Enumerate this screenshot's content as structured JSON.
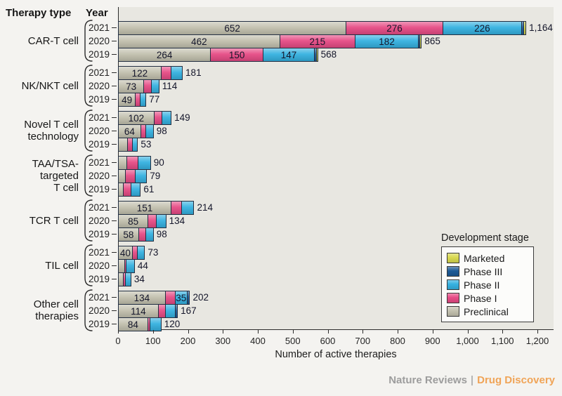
{
  "header": {
    "therapy_type_label": "Therapy type",
    "year_label": "Year"
  },
  "footer": {
    "brand": "Nature Reviews",
    "separator": "|",
    "publication": "Drug Discovery"
  },
  "chart_data": {
    "type": "bar",
    "orientation": "horizontal",
    "stacked": true,
    "title": "",
    "xlabel": "Number of active therapies",
    "ylabel": "Therapy type / Year",
    "xlim": [
      0,
      1240
    ],
    "grid": false,
    "x_ticks": [
      "0",
      "100",
      "200",
      "300",
      "400",
      "500",
      "600",
      "700",
      "800",
      "900",
      "1,000",
      "1,100",
      "1,200"
    ],
    "stages": [
      {
        "name": "Preclinical",
        "color": "#c2c0ae"
      },
      {
        "name": "Phase I",
        "color": "#e64b85"
      },
      {
        "name": "Phase II",
        "color": "#35b1e0"
      },
      {
        "name": "Phase III",
        "color": "#1d5a96"
      },
      {
        "name": "Marketed",
        "color": "#d8d94f"
      }
    ],
    "legend": {
      "title": "Development stage",
      "position": "lower right",
      "entries": [
        "Marketed",
        "Phase III",
        "Phase II",
        "Phase I",
        "Preclinical"
      ]
    },
    "groups": [
      {
        "label_lines": [
          "CAR-T cell"
        ],
        "rows": [
          {
            "year": "2021",
            "total_label": "1,164",
            "segments": [
              {
                "stage": "Preclinical",
                "value": 652,
                "label": "652"
              },
              {
                "stage": "Phase I",
                "value": 276,
                "label": "276"
              },
              {
                "stage": "Phase II",
                "value": 226,
                "label": "226"
              },
              {
                "stage": "Phase III",
                "value": 6
              },
              {
                "stage": "Marketed",
                "value": 4
              }
            ]
          },
          {
            "year": "2020",
            "total_label": "865",
            "segments": [
              {
                "stage": "Preclinical",
                "value": 462,
                "label": "462"
              },
              {
                "stage": "Phase I",
                "value": 215,
                "label": "215"
              },
              {
                "stage": "Phase II",
                "value": 182,
                "label": "182"
              },
              {
                "stage": "Phase III",
                "value": 4
              },
              {
                "stage": "Marketed",
                "value": 2
              }
            ]
          },
          {
            "year": "2019",
            "total_label": "568",
            "segments": [
              {
                "stage": "Preclinical",
                "value": 264,
                "label": "264"
              },
              {
                "stage": "Phase I",
                "value": 150,
                "label": "150"
              },
              {
                "stage": "Phase II",
                "value": 147,
                "label": "147"
              },
              {
                "stage": "Phase III",
                "value": 6
              },
              {
                "stage": "Marketed",
                "value": 1
              }
            ]
          }
        ]
      },
      {
        "label_lines": [
          "NK/NKT cell"
        ],
        "rows": [
          {
            "year": "2021",
            "total_label": "181",
            "segments": [
              {
                "stage": "Preclinical",
                "value": 122,
                "label": "122"
              },
              {
                "stage": "Phase I",
                "value": 28
              },
              {
                "stage": "Phase II",
                "value": 31
              }
            ]
          },
          {
            "year": "2020",
            "total_label": "114",
            "segments": [
              {
                "stage": "Preclinical",
                "value": 73,
                "label": "73"
              },
              {
                "stage": "Phase I",
                "value": 22
              },
              {
                "stage": "Phase II",
                "value": 19
              }
            ]
          },
          {
            "year": "2019",
            "total_label": "77",
            "segments": [
              {
                "stage": "Preclinical",
                "value": 49,
                "label": "49"
              },
              {
                "stage": "Phase I",
                "value": 13
              },
              {
                "stage": "Phase II",
                "value": 15
              }
            ]
          }
        ]
      },
      {
        "label_lines": [
          "Novel T cell",
          "technology"
        ],
        "rows": [
          {
            "year": "2021",
            "total_label": "149",
            "segments": [
              {
                "stage": "Preclinical",
                "value": 102,
                "label": "102"
              },
              {
                "stage": "Phase I",
                "value": 23
              },
              {
                "stage": "Phase II",
                "value": 24
              }
            ]
          },
          {
            "year": "2020",
            "total_label": "98",
            "segments": [
              {
                "stage": "Preclinical",
                "value": 64,
                "label": "64"
              },
              {
                "stage": "Phase I",
                "value": 15
              },
              {
                "stage": "Phase II",
                "value": 19
              }
            ]
          },
          {
            "year": "2019",
            "total_label": "53",
            "segments": [
              {
                "stage": "Preclinical",
                "value": 27
              },
              {
                "stage": "Phase I",
                "value": 13
              },
              {
                "stage": "Phase II",
                "value": 13
              }
            ]
          }
        ]
      },
      {
        "label_lines": [
          "TAA/TSA-",
          "targeted",
          "T cell"
        ],
        "rows": [
          {
            "year": "2021",
            "total_label": "90",
            "segments": [
              {
                "stage": "Preclinical",
                "value": 24
              },
              {
                "stage": "Phase I",
                "value": 32
              },
              {
                "stage": "Phase II",
                "value": 34
              }
            ]
          },
          {
            "year": "2020",
            "total_label": "79",
            "segments": [
              {
                "stage": "Preclinical",
                "value": 20
              },
              {
                "stage": "Phase I",
                "value": 28
              },
              {
                "stage": "Phase II",
                "value": 31
              }
            ]
          },
          {
            "year": "2019",
            "total_label": "61",
            "segments": [
              {
                "stage": "Preclinical",
                "value": 14
              },
              {
                "stage": "Phase I",
                "value": 22
              },
              {
                "stage": "Phase II",
                "value": 25
              }
            ]
          }
        ]
      },
      {
        "label_lines": [
          "TCR T cell"
        ],
        "rows": [
          {
            "year": "2021",
            "total_label": "214",
            "segments": [
              {
                "stage": "Preclinical",
                "value": 151,
                "label": "151"
              },
              {
                "stage": "Phase I",
                "value": 30
              },
              {
                "stage": "Phase II",
                "value": 33
              }
            ]
          },
          {
            "year": "2020",
            "total_label": "134",
            "segments": [
              {
                "stage": "Preclinical",
                "value": 85,
                "label": "85"
              },
              {
                "stage": "Phase I",
                "value": 24
              },
              {
                "stage": "Phase II",
                "value": 25
              }
            ]
          },
          {
            "year": "2019",
            "total_label": "98",
            "segments": [
              {
                "stage": "Preclinical",
                "value": 58,
                "label": "58"
              },
              {
                "stage": "Phase I",
                "value": 20
              },
              {
                "stage": "Phase II",
                "value": 20
              }
            ]
          }
        ]
      },
      {
        "label_lines": [
          "TIL cell"
        ],
        "rows": [
          {
            "year": "2021",
            "total_label": "73",
            "segments": [
              {
                "stage": "Preclinical",
                "value": 40,
                "label": "40"
              },
              {
                "stage": "Phase I",
                "value": 14
              },
              {
                "stage": "Phase II",
                "value": 19
              }
            ]
          },
          {
            "year": "2020",
            "total_label": "44",
            "segments": [
              {
                "stage": "Preclinical",
                "value": 18
              },
              {
                "stage": "Phase I",
                "value": 5
              },
              {
                "stage": "Phase II",
                "value": 21
              }
            ]
          },
          {
            "year": "2019",
            "total_label": "34",
            "segments": [
              {
                "stage": "Preclinical",
                "value": 14
              },
              {
                "stage": "Phase I",
                "value": 6
              },
              {
                "stage": "Phase II",
                "value": 14
              }
            ]
          }
        ]
      },
      {
        "label_lines": [
          "Other cell",
          "therapies"
        ],
        "rows": [
          {
            "year": "2021",
            "total_label": "202",
            "segments": [
              {
                "stage": "Preclinical",
                "value": 134,
                "label": "134"
              },
              {
                "stage": "Phase I",
                "value": 28
              },
              {
                "stage": "Phase II",
                "value": 35,
                "label": "35"
              },
              {
                "stage": "Phase III",
                "value": 5
              }
            ]
          },
          {
            "year": "2020",
            "total_label": "167",
            "segments": [
              {
                "stage": "Preclinical",
                "value": 114,
                "label": "114"
              },
              {
                "stage": "Phase I",
                "value": 21
              },
              {
                "stage": "Phase II",
                "value": 27
              },
              {
                "stage": "Phase III",
                "value": 5
              }
            ]
          },
          {
            "year": "2019",
            "total_label": "120",
            "segments": [
              {
                "stage": "Preclinical",
                "value": 84,
                "label": "84"
              },
              {
                "stage": "Phase I",
                "value": 6
              },
              {
                "stage": "Phase II",
                "value": 30
              }
            ]
          }
        ]
      }
    ]
  }
}
